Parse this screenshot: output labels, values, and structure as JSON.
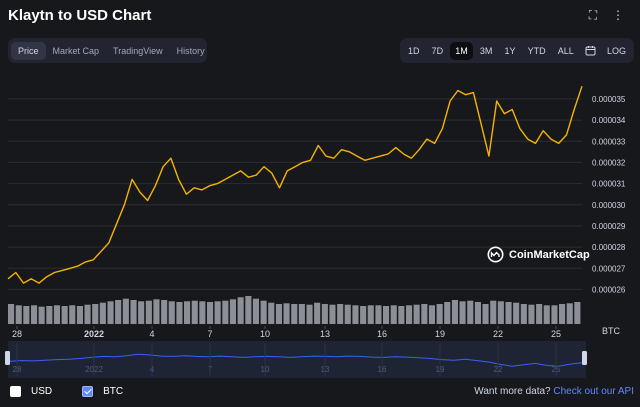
{
  "header": {
    "title": "Klaytn to USD Chart",
    "fullscreen_icon": "expand-icon",
    "more_icon": "more-options-icon"
  },
  "tabs": [
    {
      "label": "Price",
      "active": true
    },
    {
      "label": "Market Cap",
      "active": false
    },
    {
      "label": "TradingView",
      "active": false
    },
    {
      "label": "History",
      "active": false
    }
  ],
  "ranges": [
    {
      "label": "1D",
      "active": false
    },
    {
      "label": "7D",
      "active": false
    },
    {
      "label": "1M",
      "active": true
    },
    {
      "label": "3M",
      "active": false
    },
    {
      "label": "1Y",
      "active": false
    },
    {
      "label": "YTD",
      "active": false
    },
    {
      "label": "ALL",
      "active": false
    }
  ],
  "calendar_icon": "calendar-icon",
  "log_label": "LOG",
  "watermark": "CoinMarketCap",
  "legend": {
    "usd_label": "USD",
    "btc_label": "BTC",
    "usd_checked": false,
    "btc_checked": true
  },
  "footer": {
    "prompt": "Want more data?",
    "link": "Check out our API"
  },
  "colors": {
    "line": "#f5b300",
    "navigator": "#3861fb",
    "volume": "#8c8f96"
  },
  "chart_data": {
    "type": "line",
    "series": [
      {
        "values": [
          2.65e-05,
          2.68e-05,
          2.63e-05,
          2.65e-05,
          2.63e-05,
          2.66e-05,
          2.68e-05,
          2.69e-05,
          2.7e-05,
          2.71e-05,
          2.73e-05,
          2.74e-05,
          2.78e-05,
          2.82e-05,
          2.91e-05,
          3e-05,
          3.12e-05,
          3.06e-05,
          3.02e-05,
          3.09e-05,
          3.18e-05,
          3.22e-05,
          3.12e-05,
          3.05e-05,
          3.08e-05,
          3.07e-05,
          3.09e-05,
          3.1e-05,
          3.12e-05,
          3.14e-05,
          3.16e-05,
          3.13e-05,
          3.14e-05,
          3.18e-05,
          3.15e-05,
          3.08e-05,
          3.16e-05,
          3.18e-05,
          3.2e-05,
          3.21e-05,
          3.28e-05,
          3.23e-05,
          3.22e-05,
          3.26e-05,
          3.25e-05,
          3.23e-05,
          3.21e-05,
          3.22e-05,
          3.23e-05,
          3.24e-05,
          3.27e-05,
          3.24e-05,
          3.22e-05,
          3.26e-05,
          3.31e-05,
          3.29e-05,
          3.36e-05,
          3.49e-05,
          3.54e-05,
          3.52e-05,
          3.53e-05,
          3.38e-05,
          3.23e-05,
          3.49e-05,
          3.43e-05,
          3.45e-05,
          3.36e-05,
          3.31e-05,
          3.29e-05,
          3.35e-05,
          3.31e-05,
          3.29e-05,
          3.33e-05,
          3.45e-05,
          3.56e-05
        ]
      }
    ],
    "volume": [
      30,
      28,
      27,
      28,
      26,
      27,
      28,
      27,
      28,
      27,
      29,
      30,
      32,
      34,
      36,
      38,
      36,
      34,
      35,
      37,
      36,
      34,
      33,
      34,
      35,
      34,
      33,
      34,
      35,
      37,
      40,
      42,
      38,
      35,
      32,
      30,
      31,
      30,
      30,
      29,
      32,
      30,
      29,
      30,
      29,
      28,
      27,
      28,
      28,
      27,
      28,
      27,
      28,
      29,
      30,
      28,
      30,
      33,
      36,
      34,
      35,
      33,
      30,
      35,
      34,
      33,
      32,
      30,
      29,
      30,
      28,
      28,
      30,
      31,
      33
    ],
    "navigator": [
      0.42,
      0.44,
      0.43,
      0.45,
      0.47,
      0.48,
      0.5,
      0.53,
      0.56,
      0.55,
      0.58,
      0.62,
      0.6,
      0.57,
      0.56,
      0.58,
      0.56,
      0.55,
      0.57,
      0.55,
      0.53,
      0.55,
      0.56,
      0.55,
      0.53,
      0.55,
      0.57,
      0.56,
      0.55,
      0.57,
      0.56,
      0.54,
      0.53,
      0.55,
      0.54,
      0.52,
      0.5,
      0.47,
      0.45,
      0.48,
      0.44,
      0.4,
      0.33,
      0.28,
      0.32,
      0.36,
      0.3,
      0.28,
      0.34,
      0.38
    ],
    "y_ticks": [
      "0.000035",
      "0.000034",
      "0.000033",
      "0.000032",
      "0.000031",
      "0.000030",
      "0.000029",
      "0.000028",
      "0.000027",
      "0.000026"
    ],
    "ylim": [
      2.55e-05,
      3.58e-05
    ],
    "x_ticks": [
      "28",
      "2022",
      "4",
      "7",
      "10",
      "13",
      "16",
      "19",
      "22",
      "25"
    ],
    "nav_ticks": [
      "28",
      "2022",
      "4",
      "7",
      "10",
      "13",
      "16",
      "19",
      "22",
      "25"
    ],
    "volume_unit": "BTC",
    "grid": true
  }
}
